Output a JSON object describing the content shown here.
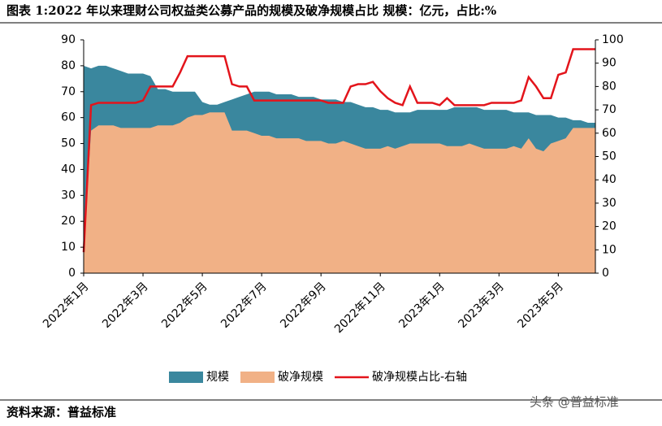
{
  "chart_data": {
    "type": "area",
    "title": "图表 1:2022 年以来理财公司权益类公募产品的规模及破净规模占比    规模：亿元，占比:%",
    "source": "资料来源：普益标准",
    "watermark": "头条 @普益标准",
    "categories": [
      "2022年1月",
      null,
      null,
      null,
      null,
      null,
      null,
      null,
      "2022年3月",
      null,
      null,
      null,
      null,
      null,
      null,
      null,
      "2022年5月",
      null,
      null,
      null,
      null,
      null,
      null,
      null,
      "2022年7月",
      null,
      null,
      null,
      null,
      null,
      null,
      null,
      "2022年9月",
      null,
      null,
      null,
      null,
      null,
      null,
      null,
      "2022年11月",
      null,
      null,
      null,
      null,
      null,
      null,
      null,
      "2023年1月",
      null,
      null,
      null,
      null,
      null,
      null,
      null,
      "2023年3月",
      null,
      null,
      null,
      null,
      null,
      null,
      null,
      "2023年5月",
      null,
      null,
      null,
      null,
      null
    ],
    "ylim": [
      0,
      90
    ],
    "yticks": [
      0,
      10,
      20,
      30,
      40,
      50,
      60,
      70,
      80,
      90
    ],
    "y2lim": [
      0,
      100
    ],
    "y2ticks": [
      0,
      10,
      20,
      30,
      40,
      50,
      60,
      70,
      80,
      90,
      100
    ],
    "legend": "bottom",
    "series": [
      {
        "name": "规模",
        "type": "area",
        "color": "#3a879e",
        "values": [
          80,
          79,
          80,
          80,
          79,
          78,
          77,
          77,
          77,
          76,
          71,
          71,
          70,
          70,
          70,
          70,
          66,
          65,
          65,
          66,
          67,
          68,
          69,
          70,
          70,
          70,
          69,
          69,
          69,
          68,
          68,
          68,
          67,
          67,
          67,
          66,
          66,
          65,
          64,
          64,
          63,
          63,
          62,
          62,
          62,
          63,
          63,
          63,
          63,
          63,
          64,
          64,
          64,
          64,
          63,
          63,
          63,
          63,
          62,
          62,
          62,
          61,
          61,
          61,
          60,
          60,
          59,
          59,
          58,
          58
        ]
      },
      {
        "name": "破净规模",
        "type": "area",
        "color": "#f1b186",
        "values": [
          10,
          55,
          57,
          57,
          57,
          56,
          56,
          56,
          56,
          56,
          57,
          57,
          57,
          58,
          60,
          61,
          61,
          62,
          62,
          62,
          55,
          55,
          55,
          54,
          53,
          53,
          52,
          52,
          52,
          52,
          51,
          51,
          51,
          50,
          50,
          51,
          50,
          49,
          48,
          48,
          48,
          49,
          48,
          49,
          50,
          50,
          50,
          50,
          50,
          49,
          49,
          49,
          50,
          49,
          48,
          48,
          48,
          48,
          49,
          48,
          52,
          48,
          47,
          50,
          51,
          52,
          56,
          56,
          56,
          56
        ]
      },
      {
        "name": "破净规模占比-右轴",
        "type": "line",
        "axis": "y2",
        "color": "#e3141b",
        "values": [
          9,
          72,
          73,
          73,
          73,
          73,
          73,
          73,
          74,
          80,
          80,
          80,
          80,
          86,
          93,
          93,
          93,
          93,
          93,
          93,
          81,
          80,
          80,
          74,
          74,
          74,
          74,
          74,
          74,
          74,
          74,
          74,
          74,
          73,
          73,
          73,
          80,
          81,
          81,
          82,
          78,
          75,
          73,
          72,
          80,
          73,
          73,
          73,
          72,
          75,
          72,
          72,
          72,
          72,
          72,
          73,
          73,
          73,
          73,
          74,
          84,
          80,
          75,
          75,
          85,
          86,
          96,
          96,
          96,
          96
        ]
      }
    ]
  }
}
